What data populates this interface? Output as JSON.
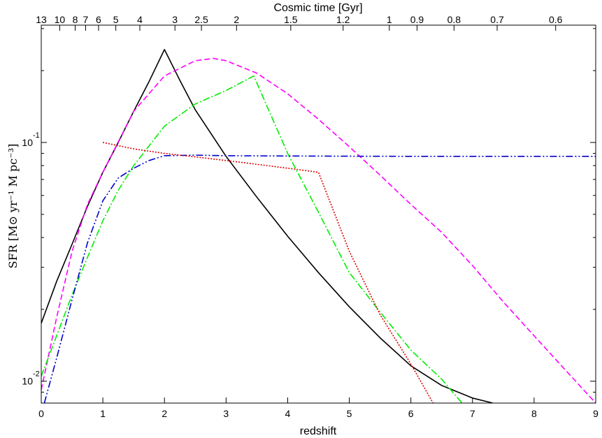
{
  "chart_data": {
    "type": "line",
    "title": "",
    "xlabel": "redshift",
    "ylabel": "SFR [M⊙ yr⁻¹ M pc⁻³]",
    "top_axis_label": "Cosmic time [Gyr]",
    "xlim": [
      0,
      9
    ],
    "ylim": [
      0.0081,
      0.31
    ],
    "yscale": "log",
    "grid": false,
    "legend": "none",
    "x_ticks": [
      0,
      1,
      2,
      3,
      4,
      5,
      6,
      7,
      8,
      9
    ],
    "x_tick_labels": [
      "0",
      "1",
      "2",
      "3",
      "4",
      "5",
      "6",
      "7",
      "8",
      "9"
    ],
    "y_major_ticks": [
      {
        "value": 0.01,
        "base": "10",
        "exponent": "-2"
      },
      {
        "value": 0.1,
        "base": "10",
        "exponent": "-1"
      }
    ],
    "top_ticks": [
      {
        "label": "13",
        "z": 0.0
      },
      {
        "label": "10",
        "z": 0.3
      },
      {
        "label": "8",
        "z": 0.55
      },
      {
        "label": "7",
        "z": 0.72
      },
      {
        "label": "6",
        "z": 0.93
      },
      {
        "label": "5",
        "z": 1.21
      },
      {
        "label": "4",
        "z": 1.6
      },
      {
        "label": "3",
        "z": 2.17
      },
      {
        "label": "2.5",
        "z": 2.6
      },
      {
        "label": "2",
        "z": 3.17
      },
      {
        "label": "1.5",
        "z": 4.05
      },
      {
        "label": "1.2",
        "z": 4.9
      },
      {
        "label": "1",
        "z": 5.65
      },
      {
        "label": "0.9",
        "z": 6.1
      },
      {
        "label": "0.8",
        "z": 6.7
      },
      {
        "label": "0.7",
        "z": 7.4
      },
      {
        "label": "0.6",
        "z": 8.35
      }
    ],
    "series": [
      {
        "color": "#000000",
        "dash": "",
        "x": [
          0.0,
          0.25,
          0.5,
          0.75,
          1.0,
          1.25,
          1.5,
          1.75,
          2.0,
          2.25,
          2.5,
          3.0,
          3.5,
          4.0,
          4.5,
          5.0,
          5.5,
          6.0,
          6.5,
          7.0,
          7.33
        ],
        "y": [
          0.0175,
          0.0262,
          0.0375,
          0.054,
          0.075,
          0.1,
          0.135,
          0.18,
          0.245,
          0.182,
          0.137,
          0.0875,
          0.059,
          0.0405,
          0.0285,
          0.0205,
          0.0152,
          0.0116,
          0.0096,
          0.0085,
          0.0081
        ]
      },
      {
        "color": "#ff00ff",
        "dash": "8,4",
        "x": [
          0.0,
          0.25,
          0.5,
          0.75,
          1.0,
          1.5,
          2.0,
          2.5,
          2.8,
          3.0,
          3.5,
          4.0,
          4.5,
          5.0,
          5.5,
          6.0,
          6.5,
          7.0,
          7.5,
          8.0,
          8.5,
          9.0
        ],
        "y": [
          0.0092,
          0.0185,
          0.035,
          0.055,
          0.075,
          0.135,
          0.19,
          0.22,
          0.225,
          0.22,
          0.195,
          0.16,
          0.125,
          0.096,
          0.073,
          0.055,
          0.042,
          0.0305,
          0.0215,
          0.0155,
          0.0112,
          0.0081
        ]
      },
      {
        "color": "#00ee00",
        "dash": "10,3,2,3",
        "x": [
          0.0,
          0.25,
          0.5,
          0.75,
          1.0,
          1.25,
          1.5,
          2.0,
          2.5,
          3.0,
          3.45,
          4.0,
          4.5,
          5.0,
          5.5,
          6.0,
          6.5,
          6.83
        ],
        "y": [
          0.0105,
          0.0155,
          0.023,
          0.033,
          0.047,
          0.063,
          0.08,
          0.117,
          0.145,
          0.165,
          0.19,
          0.09,
          0.051,
          0.0285,
          0.0195,
          0.0135,
          0.0102,
          0.0081
        ]
      },
      {
        "color": "#0000cc",
        "dash": "10,3,2,3,2,3",
        "x": [
          0.05,
          0.25,
          0.5,
          0.75,
          1.0,
          1.25,
          1.5,
          1.75,
          2.0,
          2.5,
          3.0,
          4.0,
          5.0,
          6.0,
          7.0,
          8.0,
          9.0
        ],
        "y": [
          0.0081,
          0.0125,
          0.022,
          0.038,
          0.057,
          0.071,
          0.078,
          0.084,
          0.088,
          0.0885,
          0.088,
          0.0878,
          0.0876,
          0.0875,
          0.0875,
          0.0875,
          0.0875
        ]
      },
      {
        "color": "#dd0000",
        "dash": "2,2",
        "x": [
          1.0,
          1.5,
          2.0,
          2.5,
          3.0,
          3.5,
          4.0,
          4.5,
          5.0,
          5.5,
          6.0,
          6.36
        ],
        "y": [
          0.1,
          0.094,
          0.09,
          0.087,
          0.084,
          0.081,
          0.078,
          0.075,
          0.035,
          0.019,
          0.0118,
          0.0081
        ]
      }
    ]
  }
}
